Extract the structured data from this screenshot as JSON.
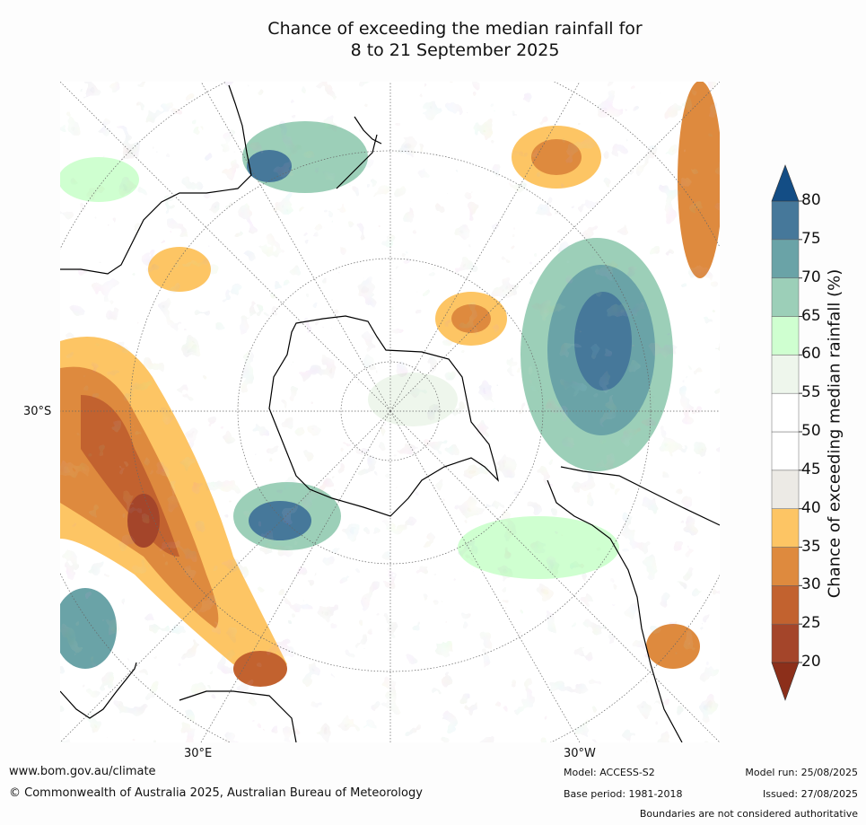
{
  "title_line1": "Chance of exceeding the median rainfall for",
  "title_line2": "8 to 21 September 2025",
  "map": {
    "lat_label": "30°S",
    "lon_labels": [
      "30°E",
      "30°W"
    ]
  },
  "colorbar": {
    "title": "Chance of exceeding median rainfall (%)",
    "ticks": [
      "20",
      "25",
      "30",
      "35",
      "40",
      "45",
      "50",
      "55",
      "60",
      "65",
      "70",
      "75",
      "80"
    ],
    "colors": [
      "#a4452a",
      "#c2622f",
      "#de8a3e",
      "#fdc564",
      "#eceae5",
      "#ffffff",
      "#ffffff",
      "#eef6ec",
      "#cfffd0",
      "#9ccfb8",
      "#6aa3a7",
      "#46789a"
    ],
    "under_color": "#8c2f1a",
    "over_color": "#134d85"
  },
  "footer": {
    "website": "www.bom.gov.au/climate",
    "copyright": "© Commonwealth of Australia 2025, Australian Bureau of Meteorology",
    "model": "Model: ACCESS-S2",
    "base_period": "Base period: 1981-2018",
    "model_run": "Model run: 25/08/2025",
    "issued": "Issued: 27/08/2025",
    "disclaimer": "Boundaries are not considered authoritative"
  }
}
